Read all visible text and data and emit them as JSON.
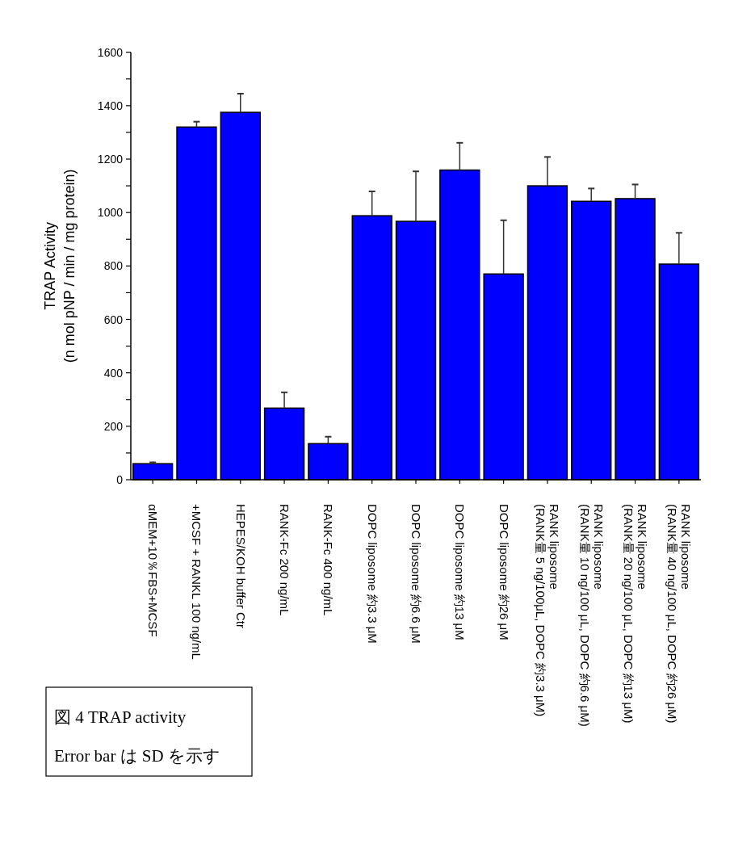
{
  "chart_data": {
    "type": "bar",
    "ylabel": "TRAP Activity\n(n mol pNP / min / mg protein)",
    "categories": [
      "αMEM+10％FBS+MCSF",
      "+MCSF + RANKL 100 ng/mL",
      "HEPES/KOH buffer Ctr",
      "RANK-Fc  200 ng/mL",
      "RANK-Fc  400 ng/mL",
      "DOPC liposome 約3.3 μM",
      "DOPC liposome 約6.6 μM",
      "DOPC liposome 約13 μM",
      "DOPC liposome 約26 μM",
      "RANK liposome\n(RANK量 5 ng/100μL, DOPC 約3.3 μM)",
      "RANK liposome\n(RANK量 10 ng/100 μL, DOPC 約6.6 μM)",
      "RANK liposome\n(RANK量 20 ng/100 μL, DOPC 約13 μM)",
      "RANK liposome\n(RANK量 40 ng/100 μL, DOPC 約26 μM)"
    ],
    "values": [
      60,
      1320,
      1375,
      268,
      135,
      988,
      967,
      1159,
      770,
      1100,
      1042,
      1052,
      807
    ],
    "errors": [
      [
        60,
        65
      ],
      [
        1320,
        1340
      ],
      [
        1375,
        1445
      ],
      [
        268,
        327
      ],
      [
        135,
        161
      ],
      [
        988,
        1079
      ],
      [
        967,
        1154
      ],
      [
        1159,
        1261
      ],
      [
        770,
        971
      ],
      [
        1100,
        1208
      ],
      [
        1042,
        1090
      ],
      [
        1052,
        1105
      ],
      [
        807,
        924
      ]
    ],
    "color": "#0000ff",
    "ylim": [
      0,
      1600
    ],
    "yticks": [
      0,
      {
        "value": 100,
        "label": null
      },
      200,
      {
        "value": 300,
        "label": null
      },
      400,
      {
        "value": 500,
        "label": null
      },
      600,
      {
        "value": 700,
        "label": null
      },
      800,
      {
        "value": 900,
        "label": null
      },
      1000,
      {
        "value": 1100,
        "label": null
      },
      1200,
      {
        "value": 1300,
        "label": null
      },
      1400,
      {
        "value": 1500,
        "label": null
      },
      1600
    ],
    "grid": false,
    "annotations": [
      "図 4 TRAP activity",
      "Error bar は SD を示す"
    ]
  }
}
